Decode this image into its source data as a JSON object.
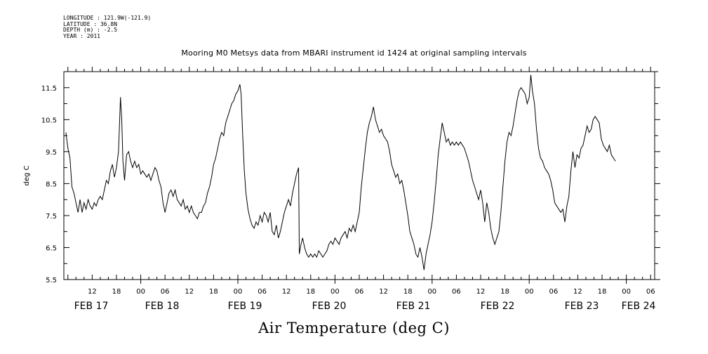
{
  "metadata": {
    "longitude": "LONGITUDE : 121.9W(-121.9)",
    "latitude": "LATITUDE : 36.8N",
    "depth": "DEPTH (m) : -2.5",
    "year": "YEAR : 2011"
  },
  "chart_data": {
    "type": "line",
    "title": "Mooring M0 Metsys data from MBARI instrument id 1424 at original sampling intervals",
    "xlabel": "Air Temperature (deg C)",
    "ylabel": "deg C",
    "x_unit": "hours since 2011-02-16 00:00",
    "xlim": [
      5,
      151
    ],
    "ylim": [
      5.5,
      12.0
    ],
    "yticks": [
      5.5,
      6.5,
      7.5,
      8.5,
      9.5,
      10.5,
      11.5
    ],
    "hour_ticks": [
      {
        "h": 12,
        "label": "12"
      },
      {
        "h": 18,
        "label": "18"
      },
      {
        "h": 24,
        "label": "00"
      },
      {
        "h": 30,
        "label": "06"
      },
      {
        "h": 36,
        "label": "12"
      },
      {
        "h": 42,
        "label": "18"
      },
      {
        "h": 48,
        "label": "00"
      },
      {
        "h": 54,
        "label": "06"
      },
      {
        "h": 60,
        "label": "12"
      },
      {
        "h": 66,
        "label": "18"
      },
      {
        "h": 72,
        "label": "00"
      },
      {
        "h": 78,
        "label": "06"
      },
      {
        "h": 84,
        "label": "12"
      },
      {
        "h": 90,
        "label": "18"
      },
      {
        "h": 96,
        "label": "00"
      },
      {
        "h": 102,
        "label": "06"
      },
      {
        "h": 108,
        "label": "12"
      },
      {
        "h": 114,
        "label": "18"
      },
      {
        "h": 120,
        "label": "00"
      },
      {
        "h": 126,
        "label": "06"
      },
      {
        "h": 132,
        "label": "12"
      },
      {
        "h": 138,
        "label": "18"
      },
      {
        "h": 144,
        "label": "00"
      },
      {
        "h": 150,
        "label": "06"
      }
    ],
    "day_labels": [
      {
        "h": 15,
        "label": "FEB 17"
      },
      {
        "h": 39,
        "label": "FEB 18"
      },
      {
        "h": 63,
        "label": "FEB 19"
      },
      {
        "h": 87,
        "label": "FEB 20"
      },
      {
        "h": 111,
        "label": "FEB 21"
      },
      {
        "h": 135,
        "label": "FEB 22"
      },
      {
        "h": 159,
        "label": "FEB 23"
      },
      {
        "h": 175,
        "label": "FEB 24"
      }
    ],
    "series": [
      {
        "values": [
          [
            5.5,
            10.1
          ],
          [
            6.0,
            9.6
          ],
          [
            6.5,
            9.3
          ],
          [
            7.0,
            8.4
          ],
          [
            7.5,
            8.2
          ],
          [
            8.0,
            7.9
          ],
          [
            8.5,
            7.6
          ],
          [
            9.0,
            8.0
          ],
          [
            9.5,
            7.6
          ],
          [
            10.0,
            7.9
          ],
          [
            10.5,
            7.7
          ],
          [
            11.0,
            8.0
          ],
          [
            11.5,
            7.8
          ],
          [
            12.0,
            7.7
          ],
          [
            12.5,
            7.9
          ],
          [
            13.0,
            7.8
          ],
          [
            13.5,
            8.0
          ],
          [
            14.0,
            8.1
          ],
          [
            14.5,
            8.0
          ],
          [
            15.0,
            8.3
          ],
          [
            15.5,
            8.6
          ],
          [
            16.0,
            8.5
          ],
          [
            16.5,
            8.9
          ],
          [
            17.0,
            9.1
          ],
          [
            17.5,
            8.7
          ],
          [
            18.0,
            9.0
          ],
          [
            18.5,
            9.5
          ],
          [
            19.0,
            11.2
          ],
          [
            19.3,
            10.5
          ],
          [
            19.6,
            9.2
          ],
          [
            20.0,
            8.6
          ],
          [
            20.5,
            9.4
          ],
          [
            21.0,
            9.5
          ],
          [
            21.5,
            9.2
          ],
          [
            22.0,
            9.0
          ],
          [
            22.5,
            9.2
          ],
          [
            23.0,
            9.0
          ],
          [
            23.5,
            9.1
          ],
          [
            24.0,
            8.8
          ],
          [
            24.5,
            8.9
          ],
          [
            25.0,
            8.8
          ],
          [
            25.5,
            8.7
          ],
          [
            26.0,
            8.8
          ],
          [
            26.5,
            8.6
          ],
          [
            27.0,
            8.8
          ],
          [
            27.5,
            9.0
          ],
          [
            28.0,
            8.9
          ],
          [
            28.5,
            8.6
          ],
          [
            29.0,
            8.4
          ],
          [
            29.5,
            7.9
          ],
          [
            30.0,
            7.6
          ],
          [
            30.5,
            7.9
          ],
          [
            31.0,
            8.2
          ],
          [
            31.5,
            8.3
          ],
          [
            32.0,
            8.1
          ],
          [
            32.5,
            8.3
          ],
          [
            33.0,
            8.0
          ],
          [
            33.5,
            7.9
          ],
          [
            34.0,
            7.8
          ],
          [
            34.5,
            8.0
          ],
          [
            35.0,
            7.7
          ],
          [
            35.5,
            7.8
          ],
          [
            36.0,
            7.6
          ],
          [
            36.5,
            7.8
          ],
          [
            37.0,
            7.6
          ],
          [
            37.5,
            7.5
          ],
          [
            38.0,
            7.4
          ],
          [
            38.5,
            7.6
          ],
          [
            39.0,
            7.6
          ],
          [
            39.5,
            7.8
          ],
          [
            40.0,
            7.9
          ],
          [
            40.5,
            8.2
          ],
          [
            41.0,
            8.4
          ],
          [
            41.5,
            8.7
          ],
          [
            42.0,
            9.1
          ],
          [
            42.5,
            9.3
          ],
          [
            43.0,
            9.6
          ],
          [
            43.5,
            9.9
          ],
          [
            44.0,
            10.1
          ],
          [
            44.5,
            10.0
          ],
          [
            45.0,
            10.4
          ],
          [
            45.5,
            10.6
          ],
          [
            46.0,
            10.8
          ],
          [
            46.5,
            11.0
          ],
          [
            47.0,
            11.1
          ],
          [
            47.5,
            11.3
          ],
          [
            48.0,
            11.4
          ],
          [
            48.5,
            11.6
          ],
          [
            48.8,
            11.3
          ],
          [
            49.2,
            10.0
          ],
          [
            49.6,
            8.9
          ],
          [
            50.0,
            8.2
          ],
          [
            50.5,
            7.7
          ],
          [
            51.0,
            7.4
          ],
          [
            51.5,
            7.2
          ],
          [
            52.0,
            7.1
          ],
          [
            52.5,
            7.3
          ],
          [
            53.0,
            7.2
          ],
          [
            53.5,
            7.5
          ],
          [
            54.0,
            7.3
          ],
          [
            54.5,
            7.6
          ],
          [
            55.0,
            7.5
          ],
          [
            55.5,
            7.3
          ],
          [
            56.0,
            7.6
          ],
          [
            56.5,
            7.0
          ],
          [
            57.0,
            6.9
          ],
          [
            57.5,
            7.2
          ],
          [
            58.0,
            6.8
          ],
          [
            58.5,
            7.0
          ],
          [
            59.0,
            7.3
          ],
          [
            59.5,
            7.6
          ],
          [
            60.0,
            7.8
          ],
          [
            60.5,
            8.0
          ],
          [
            61.0,
            7.8
          ],
          [
            61.5,
            8.2
          ],
          [
            62.0,
            8.5
          ],
          [
            62.5,
            8.8
          ],
          [
            63.0,
            9.0
          ],
          [
            63.2,
            6.3
          ],
          [
            63.6,
            6.6
          ],
          [
            64.0,
            6.8
          ],
          [
            64.5,
            6.5
          ],
          [
            65.0,
            6.3
          ],
          [
            65.5,
            6.2
          ],
          [
            66.0,
            6.3
          ],
          [
            66.5,
            6.2
          ],
          [
            67.0,
            6.3
          ],
          [
            67.5,
            6.2
          ],
          [
            68.0,
            6.4
          ],
          [
            68.5,
            6.3
          ],
          [
            69.0,
            6.2
          ],
          [
            69.5,
            6.3
          ],
          [
            70.0,
            6.4
          ],
          [
            70.5,
            6.6
          ],
          [
            71.0,
            6.7
          ],
          [
            71.5,
            6.6
          ],
          [
            72.0,
            6.8
          ],
          [
            72.5,
            6.7
          ],
          [
            73.0,
            6.6
          ],
          [
            73.5,
            6.8
          ],
          [
            74.0,
            6.9
          ],
          [
            74.5,
            7.0
          ],
          [
            75.0,
            6.8
          ],
          [
            75.5,
            7.1
          ],
          [
            76.0,
            7.0
          ],
          [
            76.5,
            7.2
          ],
          [
            77.0,
            7.0
          ],
          [
            77.5,
            7.3
          ],
          [
            78.0,
            7.6
          ],
          [
            78.5,
            8.4
          ],
          [
            79.0,
            9.0
          ],
          [
            79.5,
            9.6
          ],
          [
            80.0,
            10.1
          ],
          [
            80.5,
            10.4
          ],
          [
            81.0,
            10.6
          ],
          [
            81.5,
            10.9
          ],
          [
            82.0,
            10.5
          ],
          [
            82.5,
            10.3
          ],
          [
            83.0,
            10.1
          ],
          [
            83.5,
            10.2
          ],
          [
            84.0,
            10.0
          ],
          [
            84.5,
            9.9
          ],
          [
            85.0,
            9.8
          ],
          [
            85.5,
            9.5
          ],
          [
            86.0,
            9.1
          ],
          [
            86.5,
            8.9
          ],
          [
            87.0,
            8.7
          ],
          [
            87.5,
            8.8
          ],
          [
            88.0,
            8.5
          ],
          [
            88.5,
            8.6
          ],
          [
            89.0,
            8.3
          ],
          [
            89.5,
            7.9
          ],
          [
            90.0,
            7.5
          ],
          [
            90.5,
            7.0
          ],
          [
            91.0,
            6.8
          ],
          [
            91.5,
            6.6
          ],
          [
            92.0,
            6.3
          ],
          [
            92.5,
            6.2
          ],
          [
            93.0,
            6.5
          ],
          [
            93.5,
            6.2
          ],
          [
            94.0,
            5.8
          ],
          [
            94.5,
            6.3
          ],
          [
            95.0,
            6.6
          ],
          [
            95.5,
            6.9
          ],
          [
            96.0,
            7.3
          ],
          [
            96.5,
            7.9
          ],
          [
            97.0,
            8.6
          ],
          [
            97.5,
            9.4
          ],
          [
            98.0,
            9.9
          ],
          [
            98.5,
            10.4
          ],
          [
            99.0,
            10.1
          ],
          [
            99.5,
            9.8
          ],
          [
            100.0,
            9.9
          ],
          [
            100.5,
            9.7
          ],
          [
            101.0,
            9.8
          ],
          [
            101.5,
            9.7
          ],
          [
            102.0,
            9.8
          ],
          [
            102.5,
            9.7
          ],
          [
            103.0,
            9.8
          ],
          [
            103.5,
            9.7
          ],
          [
            104.0,
            9.6
          ],
          [
            104.5,
            9.4
          ],
          [
            105.0,
            9.2
          ],
          [
            105.5,
            8.9
          ],
          [
            106.0,
            8.6
          ],
          [
            106.5,
            8.4
          ],
          [
            107.0,
            8.2
          ],
          [
            107.5,
            8.0
          ],
          [
            108.0,
            8.3
          ],
          [
            108.5,
            7.9
          ],
          [
            109.0,
            7.3
          ],
          [
            109.5,
            7.9
          ],
          [
            110.0,
            7.6
          ],
          [
            110.5,
            7.1
          ],
          [
            111.0,
            6.8
          ],
          [
            111.5,
            6.6
          ],
          [
            112.0,
            6.8
          ],
          [
            112.5,
            7.0
          ],
          [
            113.0,
            7.6
          ],
          [
            113.5,
            8.4
          ],
          [
            114.0,
            9.2
          ],
          [
            114.5,
            9.8
          ],
          [
            115.0,
            10.1
          ],
          [
            115.5,
            10.0
          ],
          [
            116.0,
            10.3
          ],
          [
            116.5,
            10.7
          ],
          [
            117.0,
            11.1
          ],
          [
            117.5,
            11.4
          ],
          [
            118.0,
            11.5
          ],
          [
            118.5,
            11.4
          ],
          [
            119.0,
            11.3
          ],
          [
            119.5,
            11.0
          ],
          [
            120.0,
            11.2
          ],
          [
            120.4,
            11.9
          ],
          [
            120.8,
            11.4
          ],
          [
            121.3,
            11.0
          ],
          [
            121.8,
            10.2
          ],
          [
            122.3,
            9.6
          ],
          [
            122.8,
            9.3
          ],
          [
            123.3,
            9.2
          ],
          [
            123.8,
            9.0
          ],
          [
            124.3,
            8.9
          ],
          [
            124.8,
            8.8
          ],
          [
            125.3,
            8.6
          ],
          [
            125.8,
            8.3
          ],
          [
            126.3,
            7.9
          ],
          [
            126.8,
            7.8
          ],
          [
            127.3,
            7.7
          ],
          [
            127.8,
            7.6
          ],
          [
            128.3,
            7.7
          ],
          [
            128.8,
            7.3
          ],
          [
            129.3,
            7.8
          ],
          [
            129.8,
            8.1
          ],
          [
            130.3,
            8.9
          ],
          [
            130.8,
            9.5
          ],
          [
            131.3,
            9.0
          ],
          [
            131.8,
            9.4
          ],
          [
            132.3,
            9.3
          ],
          [
            132.8,
            9.6
          ],
          [
            133.3,
            9.7
          ],
          [
            133.8,
            10.0
          ],
          [
            134.3,
            10.3
          ],
          [
            134.8,
            10.1
          ],
          [
            135.3,
            10.2
          ],
          [
            135.8,
            10.5
          ],
          [
            136.3,
            10.6
          ],
          [
            136.8,
            10.5
          ],
          [
            137.3,
            10.4
          ],
          [
            137.8,
            9.9
          ],
          [
            138.3,
            9.7
          ],
          [
            138.8,
            9.6
          ],
          [
            139.3,
            9.5
          ],
          [
            139.8,
            9.7
          ],
          [
            140.3,
            9.4
          ],
          [
            140.8,
            9.3
          ],
          [
            141.3,
            9.2
          ]
        ]
      }
    ]
  }
}
